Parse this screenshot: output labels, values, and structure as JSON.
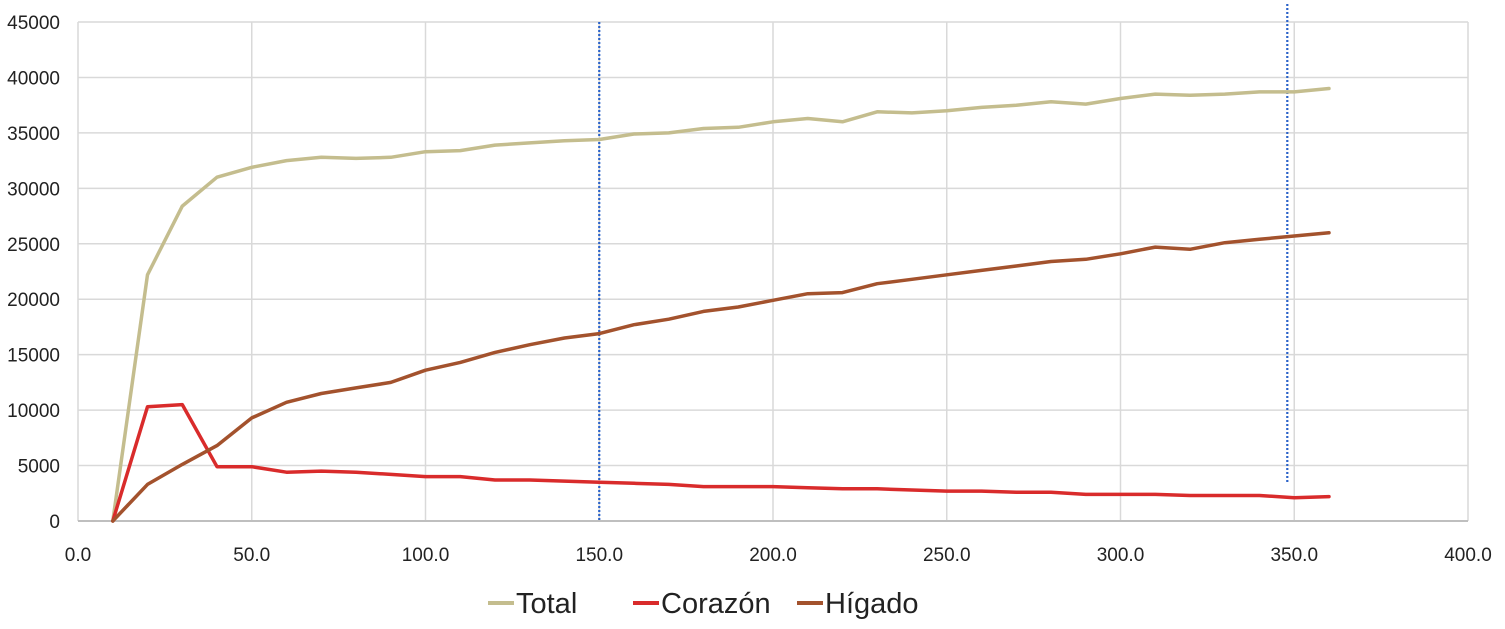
{
  "chart_data": {
    "type": "line",
    "title": "",
    "xlabel": "",
    "ylabel": "",
    "xlim": [
      0,
      400
    ],
    "ylim": [
      0,
      45000
    ],
    "grid": true,
    "legend_position": "bottom",
    "x_ticks": [
      0,
      50,
      100,
      150,
      200,
      250,
      300,
      350,
      400
    ],
    "x_tick_labels": [
      "0.0",
      "50.0",
      "100.0",
      "150.0",
      "200.0",
      "250.0",
      "300.0",
      "350.0",
      "400.0"
    ],
    "y_ticks": [
      0,
      5000,
      10000,
      15000,
      20000,
      25000,
      30000,
      35000,
      40000,
      45000
    ],
    "y_tick_labels": [
      "0",
      "5000",
      "10000",
      "15000",
      "20000",
      "25000",
      "30000",
      "35000",
      "40000",
      "45000"
    ],
    "x": [
      10,
      20,
      30,
      40,
      50,
      60,
      70,
      80,
      90,
      100,
      110,
      120,
      130,
      140,
      150,
      160,
      170,
      180,
      190,
      200,
      210,
      220,
      230,
      240,
      250,
      260,
      270,
      280,
      290,
      300,
      310,
      320,
      330,
      340,
      350,
      360
    ],
    "series": [
      {
        "name": "Total",
        "color": "#c4bd8e",
        "values": [
          0,
          22200,
          28400,
          31000,
          31900,
          32500,
          32800,
          32700,
          32800,
          33300,
          33400,
          33900,
          34100,
          34300,
          34400,
          34900,
          35000,
          35400,
          35500,
          36000,
          36300,
          36000,
          36900,
          36800,
          37000,
          37300,
          37500,
          37800,
          37600,
          38100,
          38500,
          38400,
          38500,
          38700,
          38700,
          39000
        ]
      },
      {
        "name": "Corazón",
        "color": "#d92b2b",
        "values": [
          0,
          10300,
          10500,
          4900,
          4900,
          4400,
          4500,
          4400,
          4200,
          4000,
          4000,
          3700,
          3700,
          3600,
          3500,
          3400,
          3300,
          3100,
          3100,
          3100,
          3000,
          2900,
          2900,
          2800,
          2700,
          2700,
          2600,
          2600,
          2400,
          2400,
          2400,
          2300,
          2300,
          2300,
          2100,
          2200
        ]
      },
      {
        "name": "Hígado",
        "color": "#a3522d",
        "values": [
          0,
          3300,
          5100,
          6800,
          9300,
          10700,
          11500,
          12000,
          12500,
          13600,
          14300,
          15200,
          15900,
          16500,
          16900,
          17700,
          18200,
          18900,
          19300,
          19900,
          20500,
          20600,
          21400,
          21800,
          22200,
          22600,
          23000,
          23400,
          23600,
          24100,
          24700,
          24500,
          25100,
          25400,
          25700,
          26000
        ]
      }
    ],
    "vertical_lines": [
      {
        "x": 150,
        "color": "#2a62c9",
        "style": "dotted"
      },
      {
        "x": 348,
        "color": "#2a62c9",
        "style": "dotted"
      }
    ]
  }
}
